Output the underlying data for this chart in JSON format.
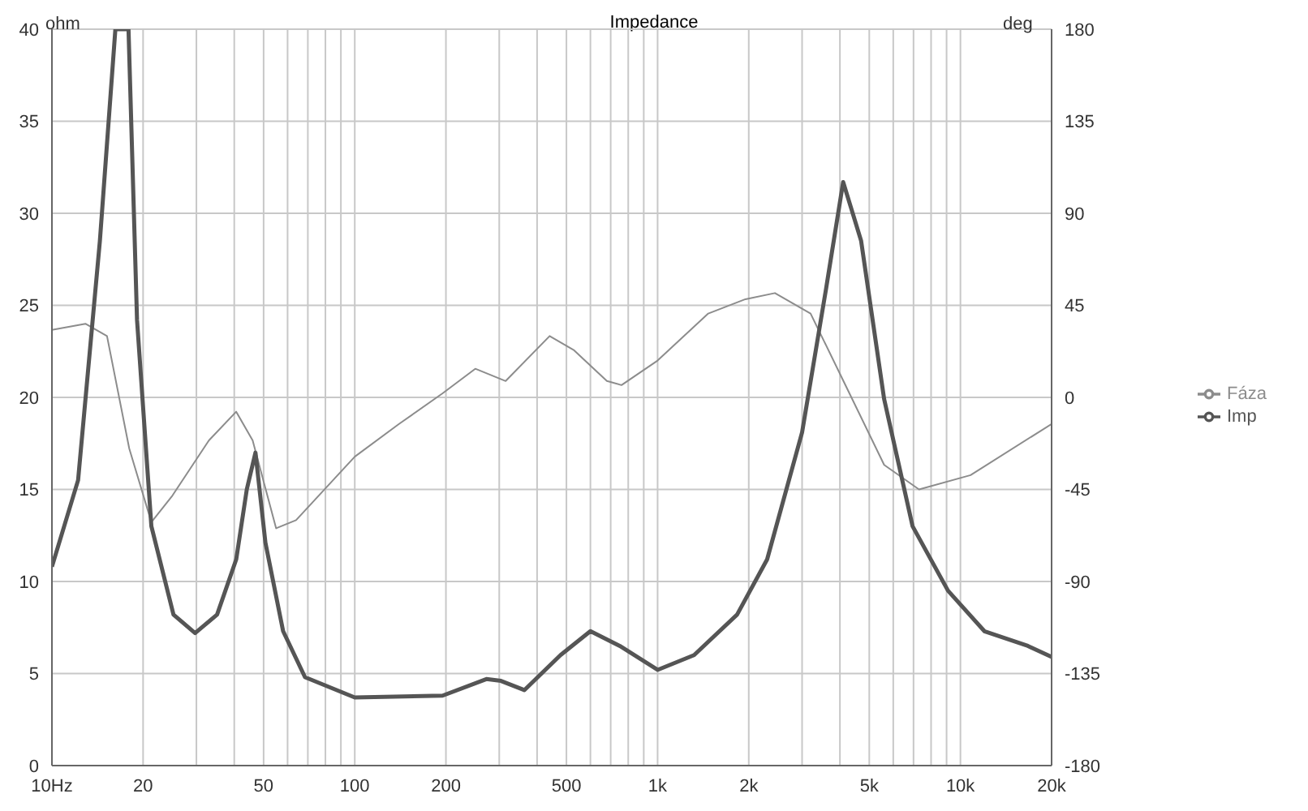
{
  "chart_data": {
    "type": "line",
    "title": "Impedance",
    "ylabel": "ohm",
    "y2label": "deg",
    "xlim": [
      10,
      20000
    ],
    "xticks": [
      {
        "value": 10,
        "label": "10Hz"
      },
      20,
      {
        "value": 30,
        "label": null
      },
      {
        "value": 40,
        "label": null
      },
      50,
      {
        "value": 60,
        "label": null
      },
      {
        "value": 70,
        "label": null
      },
      {
        "value": 80,
        "label": null
      },
      {
        "value": 90,
        "label": null
      },
      100,
      200,
      {
        "value": 300,
        "label": null
      },
      {
        "value": 400,
        "label": null
      },
      500,
      {
        "value": 600,
        "label": null
      },
      {
        "value": 700,
        "label": null
      },
      {
        "value": 800,
        "label": null
      },
      {
        "value": 900,
        "label": null
      },
      {
        "value": 1000,
        "label": "1k"
      },
      {
        "value": 2000,
        "label": "2k"
      },
      {
        "value": 3000,
        "label": null
      },
      {
        "value": 4000,
        "label": null
      },
      {
        "value": 5000,
        "label": "5k"
      },
      {
        "value": 6000,
        "label": null
      },
      {
        "value": 7000,
        "label": null
      },
      {
        "value": 8000,
        "label": null
      },
      {
        "value": 9000,
        "label": null
      },
      {
        "value": 10000,
        "label": "10k"
      },
      {
        "value": 20000,
        "label": "20k"
      }
    ],
    "ylim": [
      0,
      40
    ],
    "yticks": [
      0,
      5,
      10,
      15,
      20,
      25,
      30,
      35,
      40
    ],
    "y2lim": [
      -180,
      180
    ],
    "y2ticks": [
      -180,
      -135,
      -90,
      -45,
      0,
      45,
      90,
      135,
      180
    ],
    "log": "x",
    "grid": true,
    "legend": "right",
    "marker": "none",
    "line_style": "solid",
    "series": [
      {
        "name": "Fáza",
        "color": "#8c8c8c",
        "axis": "y2",
        "x": [
          10,
          12.9,
          15.2,
          18,
          21.3,
          25,
          33,
          40.6,
          46,
          55,
          64,
          100,
          140,
          195,
          250,
          315,
          440,
          530,
          680,
          760,
          1000,
          1470,
          1950,
          2440,
          3200,
          4300,
          5600,
          7300,
          10800,
          20000
        ],
        "values": [
          33,
          36,
          30,
          -25,
          -61,
          -48,
          -21,
          -7,
          -21,
          -64,
          -60,
          -29,
          -13,
          2,
          14,
          8,
          30,
          23,
          8,
          6,
          18,
          41,
          48,
          51,
          41,
          2,
          -33,
          -45,
          -38,
          -13
        ]
      },
      {
        "name": "Imp",
        "color": "#555555",
        "x": [
          10,
          12.2,
          14.4,
          16.2,
          17.9,
          19.1,
          21.3,
          25.2,
          29.7,
          35.1,
          40.6,
          44,
          47,
          50.7,
          58,
          68.5,
          100,
          195,
          272,
          304,
          363,
          478,
          600,
          750,
          1000,
          1320,
          1830,
          2300,
          3000,
          3600,
          4100,
          4700,
          5600,
          6950,
          9100,
          12000,
          16700,
          20000
        ],
        "values": [
          10.8,
          15.5,
          28.5,
          40,
          40,
          24.2,
          13,
          8.2,
          7.2,
          8.2,
          11.2,
          15,
          17,
          12.1,
          7.3,
          4.8,
          3.7,
          3.8,
          4.7,
          4.6,
          4.1,
          6,
          7.3,
          6.5,
          5.2,
          6,
          8.2,
          11.2,
          18.1,
          25.9,
          31.7,
          28.5,
          19.9,
          13,
          9.5,
          7.3,
          6.5,
          5.9
        ]
      }
    ]
  }
}
